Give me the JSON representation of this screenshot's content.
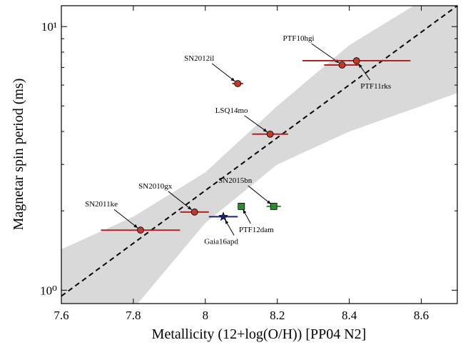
{
  "chart_data": {
    "type": "scatter",
    "x_label": "Metallicity (12+log(O/H)) [PP04 N2]",
    "y_label": "Magnetar spin period (ms)",
    "xlim": [
      7.6,
      8.7
    ],
    "xticks": [
      7.6,
      7.8,
      8.0,
      8.2,
      8.4,
      8.6
    ],
    "ylim": [
      0.89,
      12.0
    ],
    "log_y": true,
    "yticks": [
      {
        "value": 1,
        "label": "10⁰"
      },
      {
        "value": 10,
        "label": "10¹"
      }
    ],
    "yminorticks": [
      2,
      3,
      4,
      5,
      6,
      7,
      8,
      9
    ],
    "fit": {
      "x": [
        7.6,
        8.7
      ],
      "y": [
        0.95,
        12.0
      ]
    },
    "band": {
      "x": [
        7.6,
        7.8,
        8.0,
        8.2,
        8.4,
        8.6,
        8.7
      ],
      "lower": [
        0.6,
        0.85,
        1.8,
        3.0,
        4.0,
        5.0,
        5.6
      ],
      "upper": [
        1.43,
        1.9,
        2.8,
        5.0,
        8.5,
        12.5,
        16.0
      ]
    },
    "points": [
      {
        "label": "SN2012il",
        "x": 8.09,
        "y": 6.08,
        "xerr": 0.015,
        "marker": "circle",
        "color": "#c0392b",
        "err_color": "#b22222"
      },
      {
        "label": "PTF10hgi",
        "x": 8.38,
        "y": 7.15,
        "xerr": 0.05,
        "marker": "circle",
        "color": "#c0392b",
        "err_color": "#b22222"
      },
      {
        "label": "PTF11rks",
        "x": 8.42,
        "y": 7.42,
        "xerr": 0.15,
        "marker": "circle",
        "color": "#c0392b",
        "err_color": "#b22222"
      },
      {
        "label": "LSQ14mo",
        "x": 8.18,
        "y": 3.91,
        "xerr": 0.05,
        "marker": "circle",
        "color": "#c0392b",
        "err_color": "#b22222"
      },
      {
        "label": "SN2015bn",
        "x": 8.19,
        "y": 2.08,
        "xerr": 0.02,
        "marker": "square",
        "color": "#2e8b2e",
        "err_color": "#2e8b2e"
      },
      {
        "label": "PTF12dam",
        "x": 8.1,
        "y": 2.08,
        "xerr": 0.0,
        "marker": "square",
        "color": "#2e8b2e",
        "err_color": "#2e8b2e"
      },
      {
        "label": "Gaia16apd",
        "x": 8.05,
        "y": 1.9,
        "xerr": 0.04,
        "marker": "star",
        "color": "#1a237e",
        "err_color": "#1a237e"
      },
      {
        "label": "SN2010gx",
        "x": 7.97,
        "y": 1.98,
        "xerr": 0.04,
        "marker": "circle",
        "color": "#c0392b",
        "err_color": "#b22222"
      },
      {
        "label": "SN2011ke",
        "x": 7.82,
        "y": 1.69,
        "xerr": 0.11,
        "marker": "circle",
        "color": "#c0392b",
        "err_color": "#b22222"
      }
    ]
  }
}
